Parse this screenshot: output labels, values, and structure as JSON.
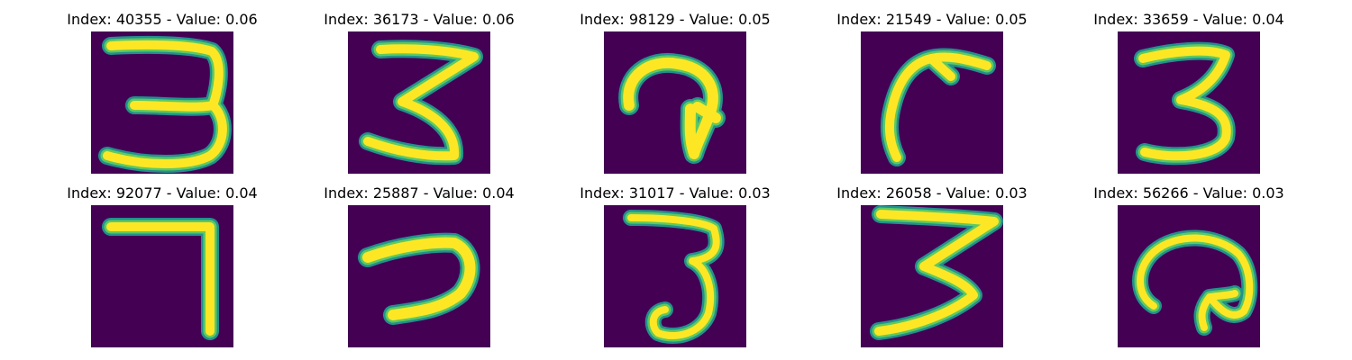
{
  "colors": {
    "background": "#440154",
    "stroke_outer": "#21918c",
    "stroke_mid": "#5ec962",
    "stroke_core": "#fde725"
  },
  "panels": [
    {
      "index": "40355",
      "value": "0.06",
      "title": "Index: 40355 - Value: 0.06",
      "digit_shape": "three"
    },
    {
      "index": "36173",
      "value": "0.06",
      "title": "Index: 36173 - Value: 0.06",
      "digit_shape": "three-zigzag"
    },
    {
      "index": "98129",
      "value": "0.05",
      "title": "Index: 98129 - Value: 0.05",
      "digit_shape": "curl-hook"
    },
    {
      "index": "21549",
      "value": "0.05",
      "title": "Index: 21549 - Value: 0.05",
      "digit_shape": "arc-stroke"
    },
    {
      "index": "33659",
      "value": "0.04",
      "title": "Index: 33659 - Value: 0.04",
      "digit_shape": "three"
    },
    {
      "index": "92077",
      "value": "0.04",
      "title": "Index: 92077 - Value: 0.04",
      "digit_shape": "seven"
    },
    {
      "index": "25887",
      "value": "0.04",
      "title": "Index: 25887 - Value: 0.04",
      "digit_shape": "seven-curved"
    },
    {
      "index": "31017",
      "value": "0.03",
      "title": "Index: 31017 - Value: 0.03",
      "digit_shape": "three-narrow"
    },
    {
      "index": "26058",
      "value": "0.03",
      "title": "Index: 26058 - Value: 0.03",
      "digit_shape": "three-zigzag-wide"
    },
    {
      "index": "56266",
      "value": "0.03",
      "title": "Index: 56266 - Value: 0.03",
      "digit_shape": "curl-loop"
    }
  ]
}
